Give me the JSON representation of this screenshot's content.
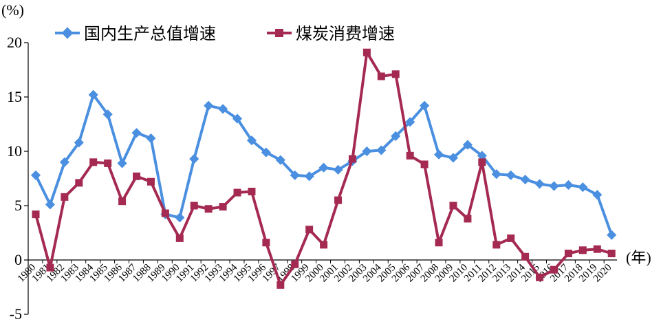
{
  "chart_data": {
    "type": "line",
    "ylabel": "(%)",
    "xlabel": "(年)",
    "ylim": [
      -5,
      20
    ],
    "y_ticks": [
      -5,
      0,
      5,
      10,
      15,
      20
    ],
    "grid": false,
    "legend_position": "top",
    "x": [
      "1980",
      "1981",
      "1982",
      "1983",
      "1984",
      "1985",
      "1986",
      "1987",
      "1988",
      "1989",
      "1990",
      "1991",
      "1992",
      "1993",
      "1994",
      "1995",
      "1996",
      "1997",
      "1998",
      "1999",
      "2000",
      "2001",
      "2002",
      "2003",
      "2004",
      "2005",
      "2006",
      "2007",
      "2008",
      "2009",
      "2010",
      "2011",
      "2012",
      "2013",
      "2014",
      "2015",
      "2016",
      "2017",
      "2018",
      "2019",
      "2020"
    ],
    "series": [
      {
        "name": "国内生产总值增速",
        "color": "#4a8fe0",
        "marker": "diamond",
        "values": [
          7.8,
          5.1,
          9.0,
          10.8,
          15.2,
          13.4,
          8.9,
          11.7,
          11.2,
          4.2,
          3.9,
          9.3,
          14.2,
          13.9,
          13.0,
          11.0,
          9.9,
          9.2,
          7.8,
          7.7,
          8.5,
          8.3,
          9.1,
          10.0,
          10.1,
          11.4,
          12.7,
          14.2,
          9.7,
          9.4,
          10.6,
          9.6,
          7.9,
          7.8,
          7.4,
          7.0,
          6.8,
          6.9,
          6.7,
          6.0,
          2.3
        ]
      },
      {
        "name": "煤炭消费增速",
        "color": "#a52a52",
        "marker": "square",
        "values": [
          4.2,
          -0.7,
          5.8,
          7.1,
          9.0,
          8.9,
          5.4,
          7.7,
          7.2,
          4.3,
          2.0,
          5.0,
          4.7,
          4.9,
          6.2,
          6.3,
          1.6,
          -2.3,
          -0.4,
          2.8,
          1.4,
          5.5,
          9.3,
          19.1,
          16.9,
          17.1,
          9.6,
          8.8,
          1.6,
          5.0,
          3.8,
          9.0,
          1.4,
          2.0,
          0.3,
          -1.6,
          -0.9,
          0.6,
          0.9,
          1.0,
          0.6
        ]
      }
    ]
  }
}
